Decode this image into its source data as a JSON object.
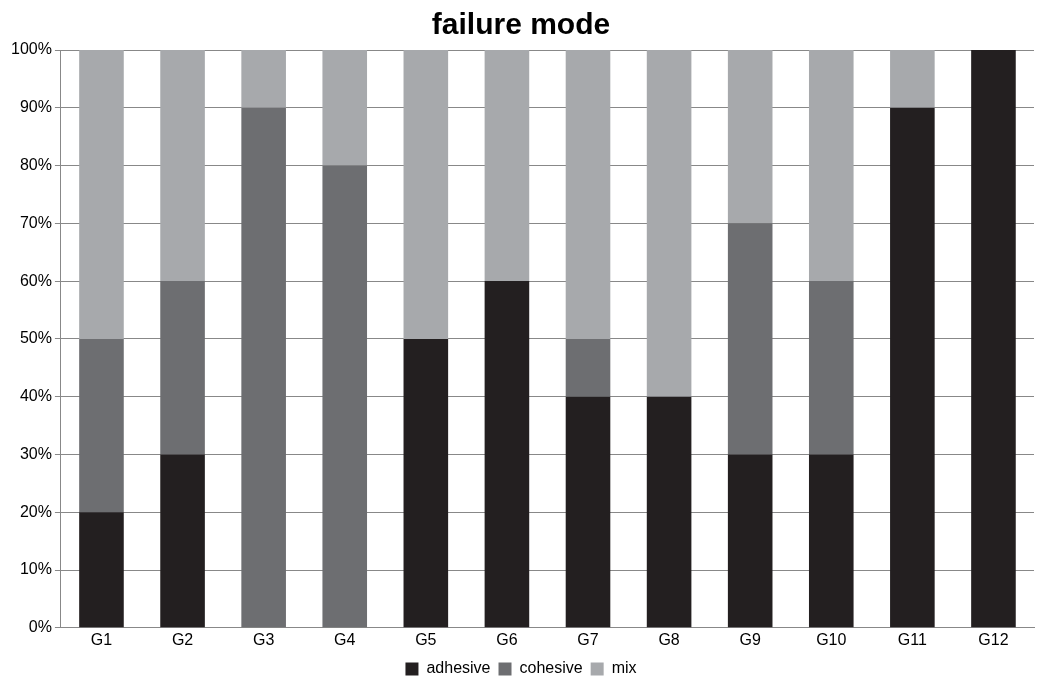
{
  "chart_data": {
    "type": "bar",
    "title": "failure mode",
    "stacked": true,
    "categories": [
      "G1",
      "G2",
      "G3",
      "G4",
      "G5",
      "G6",
      "G7",
      "G8",
      "G9",
      "G10",
      "G11",
      "G12"
    ],
    "series": [
      {
        "name": "adhesive",
        "color": "#231f20",
        "values": [
          20,
          30,
          0,
          0,
          50,
          60,
          40,
          40,
          30,
          30,
          90,
          100
        ]
      },
      {
        "name": "cohesive",
        "color": "#6d6e71",
        "values": [
          30,
          30,
          90,
          80,
          0,
          0,
          10,
          0,
          40,
          30,
          0,
          0
        ]
      },
      {
        "name": "mix",
        "color": "#a7a9ac",
        "values": [
          50,
          40,
          10,
          20,
          50,
          40,
          50,
          60,
          30,
          40,
          10,
          0
        ]
      }
    ],
    "ylim": [
      0,
      100
    ],
    "yticks": [
      {
        "value": 0,
        "label": "0%"
      },
      {
        "value": 10,
        "label": "10%"
      },
      {
        "value": 20,
        "label": "20%"
      },
      {
        "value": 30,
        "label": "30%"
      },
      {
        "value": 40,
        "label": "40%"
      },
      {
        "value": 50,
        "label": "50%"
      },
      {
        "value": 60,
        "label": "60%"
      },
      {
        "value": 70,
        "label": "70%"
      },
      {
        "value": 80,
        "label": "80%"
      },
      {
        "value": 90,
        "label": "90%"
      },
      {
        "value": 100,
        "label": "100%"
      }
    ],
    "grid": "y",
    "legend": "bottom"
  }
}
